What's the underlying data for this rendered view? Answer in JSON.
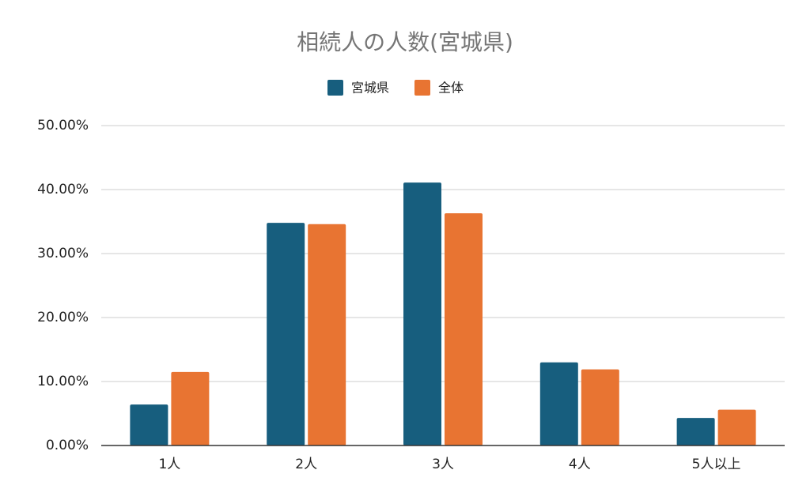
{
  "chart_data": {
    "type": "bar",
    "title": "相続人の人数(宮城県)",
    "categories": [
      "1人",
      "2人",
      "3人",
      "4人",
      "5人以上"
    ],
    "series": [
      {
        "name": "宮城県",
        "color": "#175e7e",
        "values": [
          6.4,
          34.8,
          41.1,
          13.0,
          4.3
        ]
      },
      {
        "name": "全体",
        "color": "#e87432",
        "values": [
          11.5,
          34.6,
          36.3,
          11.9,
          5.6
        ]
      }
    ],
    "ylim": [
      0,
      50
    ],
    "yticks": [
      {
        "value": 0,
        "label": "0.00%"
      },
      {
        "value": 10,
        "label": "10.00%"
      },
      {
        "value": 20,
        "label": "20.00%"
      },
      {
        "value": 30,
        "label": "30.00%"
      },
      {
        "value": 40,
        "label": "40.00%"
      },
      {
        "value": 50,
        "label": "50.00%"
      }
    ],
    "grid": true,
    "legend": "top"
  }
}
